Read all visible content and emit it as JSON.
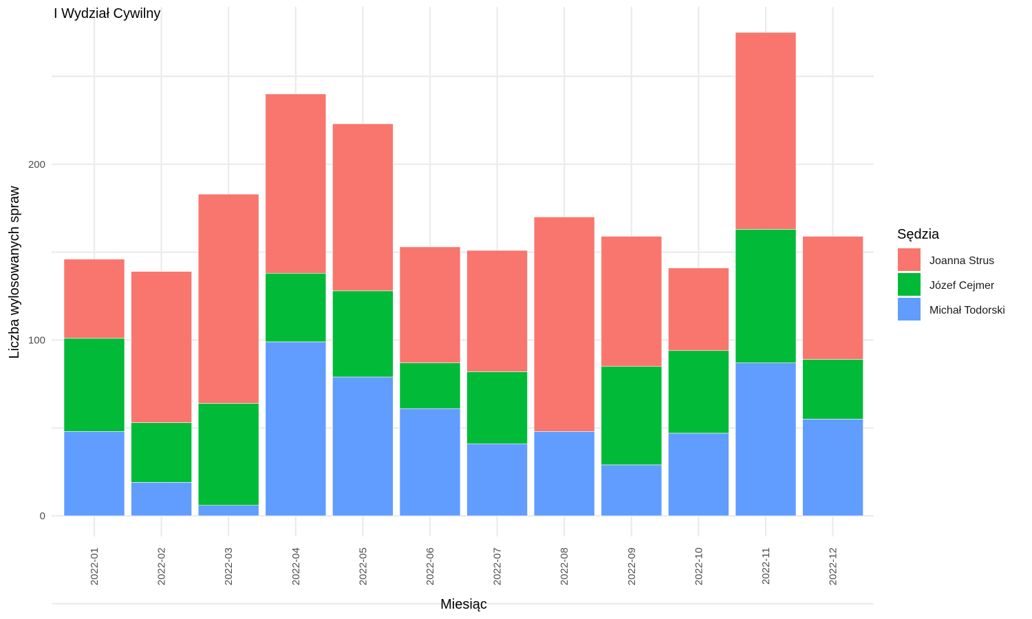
{
  "chart_data": {
    "type": "bar",
    "stacked": true,
    "title": "I Wydział Cywilny",
    "xlabel": "Miesiąc",
    "ylabel": "Liczba wylosowanych spraw",
    "ylim": [
      0,
      280
    ],
    "yticks": [
      0,
      100,
      200
    ],
    "grid": true,
    "legend": {
      "title": "Sędzia",
      "position": "right"
    },
    "categories": [
      "2022-01",
      "2022-02",
      "2022-03",
      "2022-04",
      "2022-05",
      "2022-06",
      "2022-07",
      "2022-08",
      "2022-09",
      "2022-10",
      "2022-11",
      "2022-12"
    ],
    "series": [
      {
        "name": "Michał Todorski",
        "color": "#619CFF",
        "values": [
          48,
          19,
          6,
          99,
          79,
          61,
          41,
          48,
          29,
          47,
          87,
          55
        ]
      },
      {
        "name": "Józef Cejmer",
        "color": "#00BA38",
        "values": [
          53,
          34,
          58,
          39,
          49,
          26,
          41,
          0,
          56,
          47,
          76,
          34
        ]
      },
      {
        "name": "Joanna Strus",
        "color": "#F8766D",
        "values": [
          45,
          86,
          119,
          102,
          95,
          66,
          69,
          122,
          74,
          47,
          112,
          70
        ]
      }
    ],
    "legend_order": [
      "Joanna Strus",
      "Józef Cejmer",
      "Michał Todorski"
    ]
  }
}
